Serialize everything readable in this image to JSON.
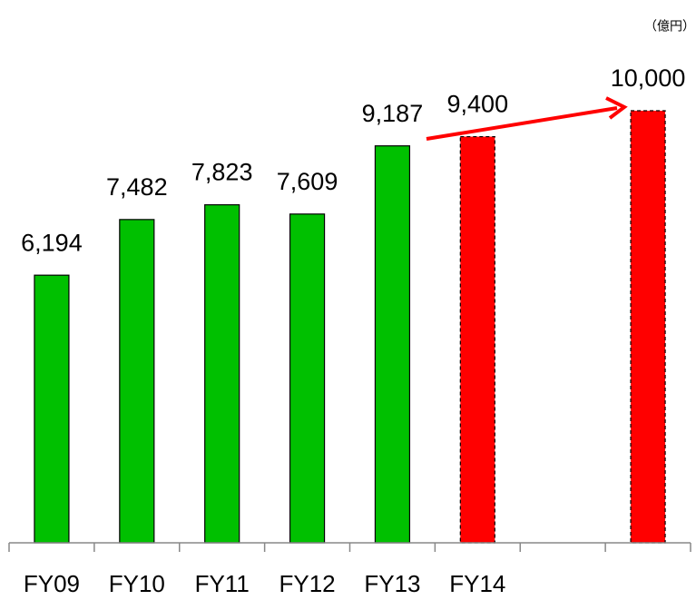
{
  "chart_data": {
    "type": "bar",
    "unit": "（億円）",
    "categories": [
      "FY09",
      "FY10",
      "FY11",
      "FY12",
      "FY13",
      "FY14",
      null,
      null
    ],
    "values": [
      6194,
      7482,
      7823,
      7609,
      9187,
      9400,
      null,
      10000
    ],
    "value_labels": [
      "6,194",
      "7,482",
      "7,823",
      "7,609",
      "9,187",
      "9,400",
      null,
      "10,000"
    ],
    "colors": [
      "#00c000",
      "#00c000",
      "#00c000",
      "#00c000",
      "#00c000",
      "#ff0000",
      null,
      "#ff0000"
    ],
    "dashed": [
      false,
      false,
      false,
      false,
      false,
      true,
      null,
      true
    ],
    "ylim": [
      0,
      12563
    ]
  }
}
